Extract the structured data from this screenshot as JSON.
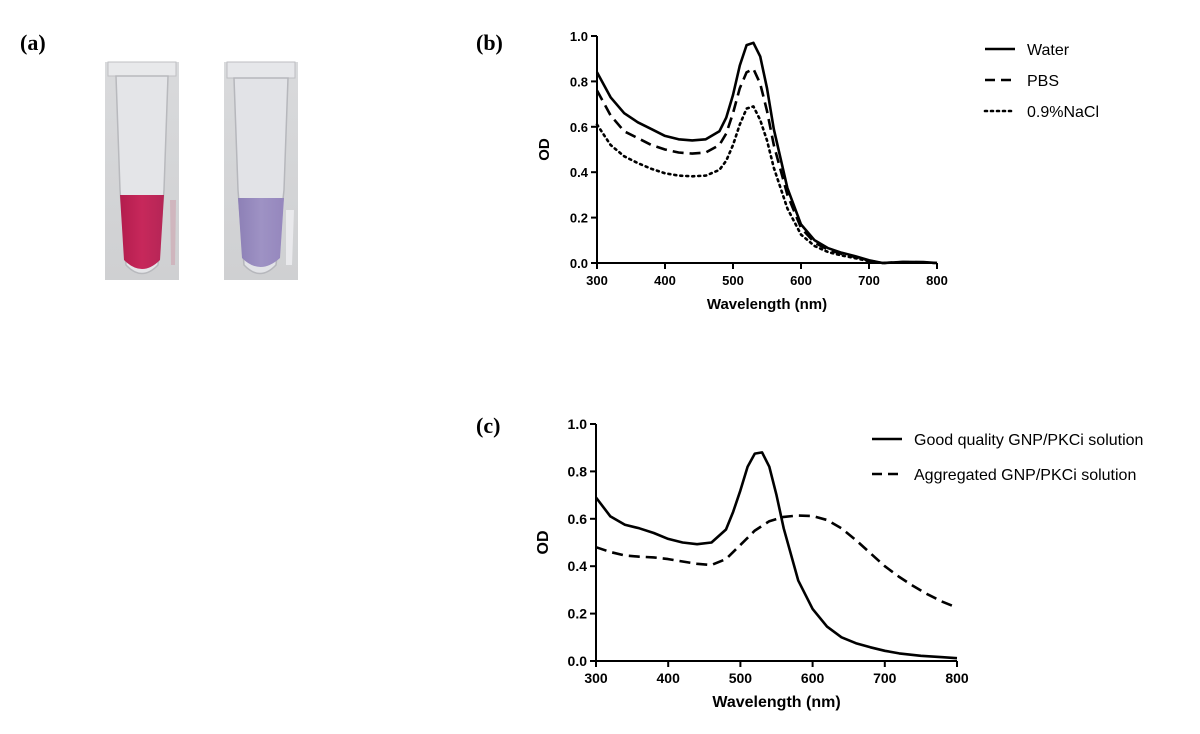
{
  "figure": {
    "panel_a_label": "(a)",
    "panel_b_label": "(b)",
    "panel_c_label": "(c)"
  },
  "tube_colors": {
    "tube_1_liquid": "#c7285b",
    "tube_2_liquid": "#9e92c4"
  },
  "chart_data": [
    {
      "type": "line",
      "panel": "b",
      "title": "",
      "xlabel": "Wavelength (nm)",
      "ylabel": "OD",
      "xlim": [
        300,
        800
      ],
      "ylim": [
        0.0,
        1.0
      ],
      "xticks": [
        300,
        400,
        500,
        600,
        700,
        800
      ],
      "yticks": [
        0.0,
        0.2,
        0.4,
        0.6,
        0.8,
        1.0
      ],
      "xtick_labels": [
        "300",
        "400",
        "500",
        "600",
        "700",
        "800"
      ],
      "ytick_labels": [
        "0.0",
        "0.2",
        "0.4",
        "0.6",
        "0.8",
        "1.0"
      ],
      "legend_position": "top-right",
      "series": [
        {
          "name": "Water",
          "style": "solid",
          "x": [
            300,
            320,
            340,
            360,
            380,
            400,
            420,
            440,
            460,
            480,
            490,
            500,
            510,
            520,
            530,
            540,
            550,
            560,
            580,
            600,
            620,
            640,
            660,
            680,
            700,
            720,
            750,
            780,
            800
          ],
          "y": [
            0.84,
            0.73,
            0.66,
            0.62,
            0.59,
            0.56,
            0.545,
            0.54,
            0.545,
            0.58,
            0.64,
            0.74,
            0.87,
            0.96,
            0.97,
            0.91,
            0.77,
            0.59,
            0.33,
            0.17,
            0.1,
            0.065,
            0.045,
            0.03,
            0.012,
            0.0,
            0.005,
            0.004,
            0.0
          ]
        },
        {
          "name": "PBS",
          "style": "dashed",
          "x": [
            300,
            320,
            340,
            360,
            380,
            400,
            420,
            440,
            460,
            480,
            490,
            500,
            510,
            520,
            530,
            540,
            550,
            560,
            580,
            600,
            620,
            640,
            660,
            680,
            700,
            720,
            750,
            780,
            800
          ],
          "y": [
            0.76,
            0.65,
            0.58,
            0.55,
            0.52,
            0.5,
            0.487,
            0.482,
            0.487,
            0.52,
            0.57,
            0.66,
            0.77,
            0.84,
            0.855,
            0.79,
            0.67,
            0.52,
            0.3,
            0.155,
            0.09,
            0.058,
            0.04,
            0.026,
            0.01,
            0.0,
            0.004,
            0.003,
            0.0
          ]
        },
        {
          "name": "0.9%NaCl",
          "style": "dotted",
          "x": [
            300,
            320,
            340,
            360,
            380,
            400,
            420,
            440,
            460,
            480,
            490,
            500,
            510,
            520,
            530,
            540,
            550,
            560,
            580,
            600,
            620,
            640,
            660,
            680,
            700,
            720,
            750,
            780,
            800
          ],
          "y": [
            0.61,
            0.52,
            0.47,
            0.44,
            0.415,
            0.395,
            0.385,
            0.382,
            0.385,
            0.41,
            0.45,
            0.52,
            0.61,
            0.68,
            0.69,
            0.63,
            0.54,
            0.42,
            0.24,
            0.125,
            0.075,
            0.048,
            0.033,
            0.021,
            0.008,
            0.0,
            0.003,
            0.002,
            0.0
          ]
        }
      ]
    },
    {
      "type": "line",
      "panel": "c",
      "title": "",
      "xlabel": "Wavelength (nm)",
      "ylabel": "OD",
      "xlim": [
        300,
        800
      ],
      "ylim": [
        0.0,
        1.0
      ],
      "xticks": [
        300,
        400,
        500,
        600,
        700,
        800
      ],
      "yticks": [
        0.0,
        0.2,
        0.4,
        0.6,
        0.8,
        1.0
      ],
      "xtick_labels": [
        "300",
        "400",
        "500",
        "600",
        "700",
        "800"
      ],
      "ytick_labels": [
        "0.0",
        "0.2",
        "0.4",
        "0.6",
        "0.8",
        "1.0"
      ],
      "legend_position": "top-right",
      "series": [
        {
          "name": "Good quality GNP/PKCi solution",
          "style": "solid",
          "x": [
            300,
            320,
            340,
            360,
            380,
            400,
            420,
            440,
            460,
            480,
            490,
            500,
            510,
            520,
            530,
            540,
            550,
            560,
            580,
            600,
            620,
            640,
            660,
            680,
            700,
            720,
            750,
            780,
            800
          ],
          "y": [
            0.69,
            0.61,
            0.575,
            0.56,
            0.54,
            0.515,
            0.5,
            0.493,
            0.5,
            0.555,
            0.63,
            0.72,
            0.82,
            0.875,
            0.88,
            0.82,
            0.7,
            0.56,
            0.34,
            0.22,
            0.145,
            0.1,
            0.075,
            0.058,
            0.043,
            0.032,
            0.022,
            0.016,
            0.012
          ]
        },
        {
          "name": "Aggregated  GNP/PKCi solution",
          "style": "dashed",
          "x": [
            300,
            320,
            340,
            360,
            380,
            400,
            420,
            440,
            460,
            480,
            500,
            520,
            540,
            560,
            580,
            600,
            620,
            640,
            660,
            680,
            700,
            720,
            740,
            760,
            780,
            800
          ],
          "y": [
            0.48,
            0.46,
            0.445,
            0.44,
            0.437,
            0.43,
            0.42,
            0.41,
            0.405,
            0.43,
            0.49,
            0.55,
            0.59,
            0.608,
            0.614,
            0.612,
            0.595,
            0.56,
            0.51,
            0.455,
            0.4,
            0.355,
            0.315,
            0.28,
            0.25,
            0.225
          ]
        }
      ]
    }
  ]
}
